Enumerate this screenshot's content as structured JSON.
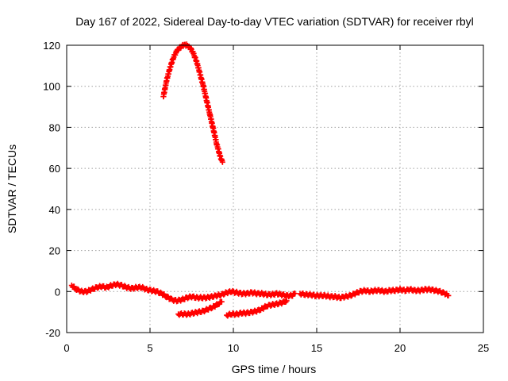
{
  "chart_data": {
    "type": "scatter",
    "title": "Day 167 of 2022, Sidereal Day-to-day VTEC variation (SDTVAR) for receiver rbyl",
    "xlabel": "GPS time / hours",
    "ylabel": "SDTVAR / TECUs",
    "xlim": [
      0,
      25
    ],
    "ylim": [
      -20,
      120
    ],
    "xticks": [
      0,
      5,
      10,
      15,
      20,
      25
    ],
    "yticks": [
      -20,
      0,
      20,
      40,
      60,
      80,
      100,
      120
    ],
    "grid": true,
    "marker": "+",
    "color": "#ff0000",
    "series": [
      {
        "values": [
          [
            5.8,
            95
          ],
          [
            6.0,
            103
          ],
          [
            6.2,
            109
          ],
          [
            6.4,
            114
          ],
          [
            6.6,
            117
          ],
          [
            6.8,
            119
          ],
          [
            7.0,
            120
          ],
          [
            7.2,
            120
          ],
          [
            7.4,
            119
          ],
          [
            7.6,
            116
          ],
          [
            7.8,
            112
          ],
          [
            8.0,
            106
          ],
          [
            8.2,
            100
          ],
          [
            8.4,
            93
          ],
          [
            8.6,
            86
          ],
          [
            8.8,
            79
          ],
          [
            9.0,
            72
          ],
          [
            9.2,
            66
          ],
          [
            9.35,
            63
          ]
        ]
      },
      {
        "values": [
          [
            0.3,
            3
          ],
          [
            0.6,
            1
          ],
          [
            0.9,
            0
          ],
          [
            1.2,
            0
          ],
          [
            1.5,
            1
          ],
          [
            1.8,
            2
          ],
          [
            2.1,
            2.5
          ],
          [
            2.4,
            2
          ],
          [
            2.7,
            3
          ],
          [
            3.0,
            3.5
          ],
          [
            3.3,
            3
          ],
          [
            3.6,
            2
          ],
          [
            3.9,
            1.5
          ],
          [
            4.2,
            2
          ],
          [
            4.5,
            2
          ],
          [
            4.8,
            1
          ],
          [
            5.1,
            0.5
          ],
          [
            5.4,
            0
          ],
          [
            5.7,
            -1
          ],
          [
            6.0,
            -2.5
          ],
          [
            6.3,
            -4
          ],
          [
            6.6,
            -4.5
          ],
          [
            6.9,
            -4
          ],
          [
            7.2,
            -3
          ],
          [
            7.5,
            -2.5
          ],
          [
            7.8,
            -3
          ],
          [
            8.1,
            -3
          ],
          [
            8.4,
            -3
          ],
          [
            8.7,
            -2.5
          ],
          [
            9.0,
            -2
          ],
          [
            9.3,
            -1.5
          ],
          [
            9.6,
            -0.5
          ],
          [
            9.9,
            0
          ],
          [
            10.2,
            -0.5
          ],
          [
            10.5,
            -1
          ],
          [
            10.8,
            -1
          ],
          [
            11.1,
            -0.5
          ],
          [
            11.4,
            -1
          ],
          [
            11.7,
            -1
          ],
          [
            12.0,
            -1.5
          ],
          [
            12.3,
            -1.5
          ],
          [
            12.6,
            -1
          ],
          [
            12.9,
            -1.5
          ],
          [
            13.2,
            -2
          ],
          [
            13.5,
            -2
          ],
          [
            13.7,
            -1
          ]
        ]
      },
      {
        "values": [
          [
            14.0,
            -1
          ],
          [
            14.3,
            -1.5
          ],
          [
            14.6,
            -1.5
          ],
          [
            14.9,
            -2
          ],
          [
            15.2,
            -2
          ],
          [
            15.5,
            -2
          ],
          [
            15.8,
            -2.5
          ],
          [
            16.1,
            -2.5
          ],
          [
            16.4,
            -3
          ],
          [
            16.7,
            -2.5
          ],
          [
            17.0,
            -2
          ],
          [
            17.3,
            -1
          ],
          [
            17.6,
            0
          ],
          [
            17.9,
            0.5
          ],
          [
            18.2,
            0
          ],
          [
            18.5,
            0.5
          ],
          [
            18.8,
            0.5
          ],
          [
            19.1,
            0
          ],
          [
            19.4,
            0.5
          ],
          [
            19.7,
            0.5
          ],
          [
            20.0,
            1
          ],
          [
            20.3,
            0.5
          ],
          [
            20.6,
            1
          ],
          [
            20.9,
            0.5
          ],
          [
            21.2,
            0.5
          ],
          [
            21.5,
            1
          ],
          [
            21.8,
            1
          ],
          [
            22.1,
            0.5
          ],
          [
            22.4,
            0
          ],
          [
            22.7,
            -1
          ],
          [
            22.9,
            -2
          ]
        ]
      },
      {
        "values": [
          [
            6.7,
            -11
          ],
          [
            7.0,
            -11
          ],
          [
            7.3,
            -11
          ],
          [
            7.6,
            -10.5
          ],
          [
            7.9,
            -10
          ],
          [
            8.2,
            -9.5
          ],
          [
            8.5,
            -8.5
          ],
          [
            8.8,
            -7.5
          ],
          [
            9.1,
            -6
          ],
          [
            9.3,
            -5
          ]
        ]
      },
      {
        "values": [
          [
            9.6,
            -11.5
          ],
          [
            9.9,
            -11
          ],
          [
            10.2,
            -11
          ],
          [
            10.5,
            -10.5
          ],
          [
            10.8,
            -10.5
          ],
          [
            11.1,
            -10
          ],
          [
            11.4,
            -9.5
          ],
          [
            11.7,
            -8.5
          ],
          [
            12.0,
            -7
          ],
          [
            12.3,
            -6.5
          ],
          [
            12.6,
            -6
          ],
          [
            12.9,
            -5.5
          ],
          [
            13.2,
            -4.5
          ]
        ]
      }
    ]
  }
}
